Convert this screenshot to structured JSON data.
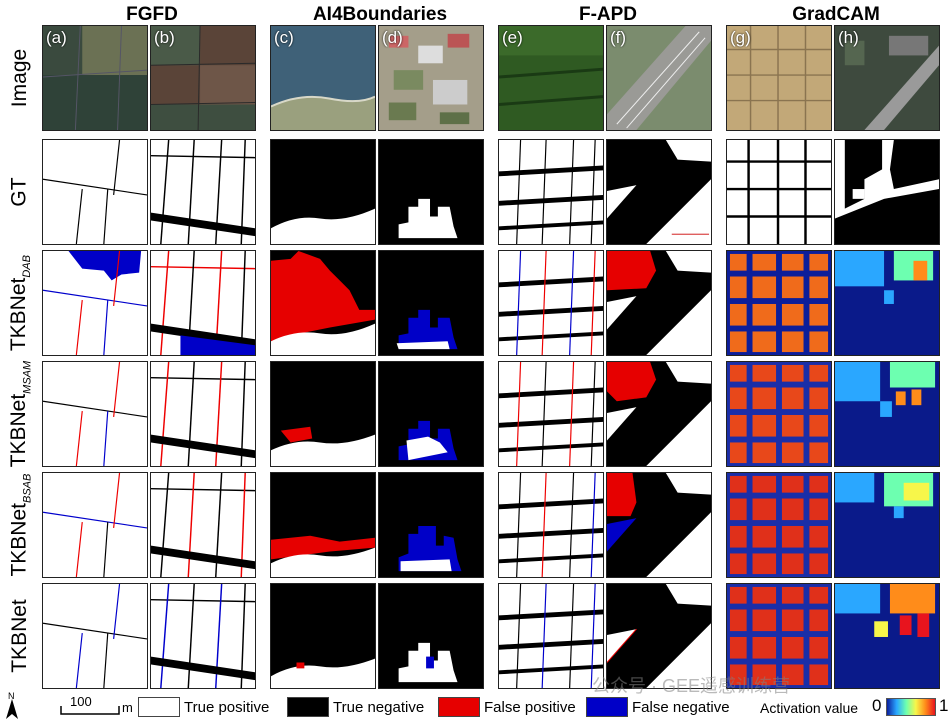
{
  "columns": [
    "FGFD",
    "AI4Boundaries",
    "F-APD",
    "GradCAM"
  ],
  "panel_letters": [
    "(a)",
    "(b)",
    "(c)",
    "(d)",
    "(e)",
    "(f)",
    "(g)",
    "(h)"
  ],
  "rows": [
    {
      "label": "Image",
      "sub": ""
    },
    {
      "label": "GT",
      "sub": ""
    },
    {
      "label": "TKBNet",
      "sub": "DAB"
    },
    {
      "label": "TKBNet",
      "sub": "MSAM"
    },
    {
      "label": "TKBNet",
      "sub": "BSAB"
    },
    {
      "label": "TKBNet",
      "sub": ""
    }
  ],
  "legend": {
    "scale_value": "100",
    "scale_unit": "m",
    "north": "N",
    "items": [
      {
        "label": "True positive",
        "color": "#ffffff"
      },
      {
        "label": "True negative",
        "color": "#000000"
      },
      {
        "label": "False positive",
        "color": "#e60000"
      },
      {
        "label": "False negative",
        "color": "#0000c8"
      }
    ],
    "activation_label": "Activation value",
    "activation_min": "0",
    "activation_max": "1"
  },
  "watermark": "公众号 · GEE遥感训练营"
}
